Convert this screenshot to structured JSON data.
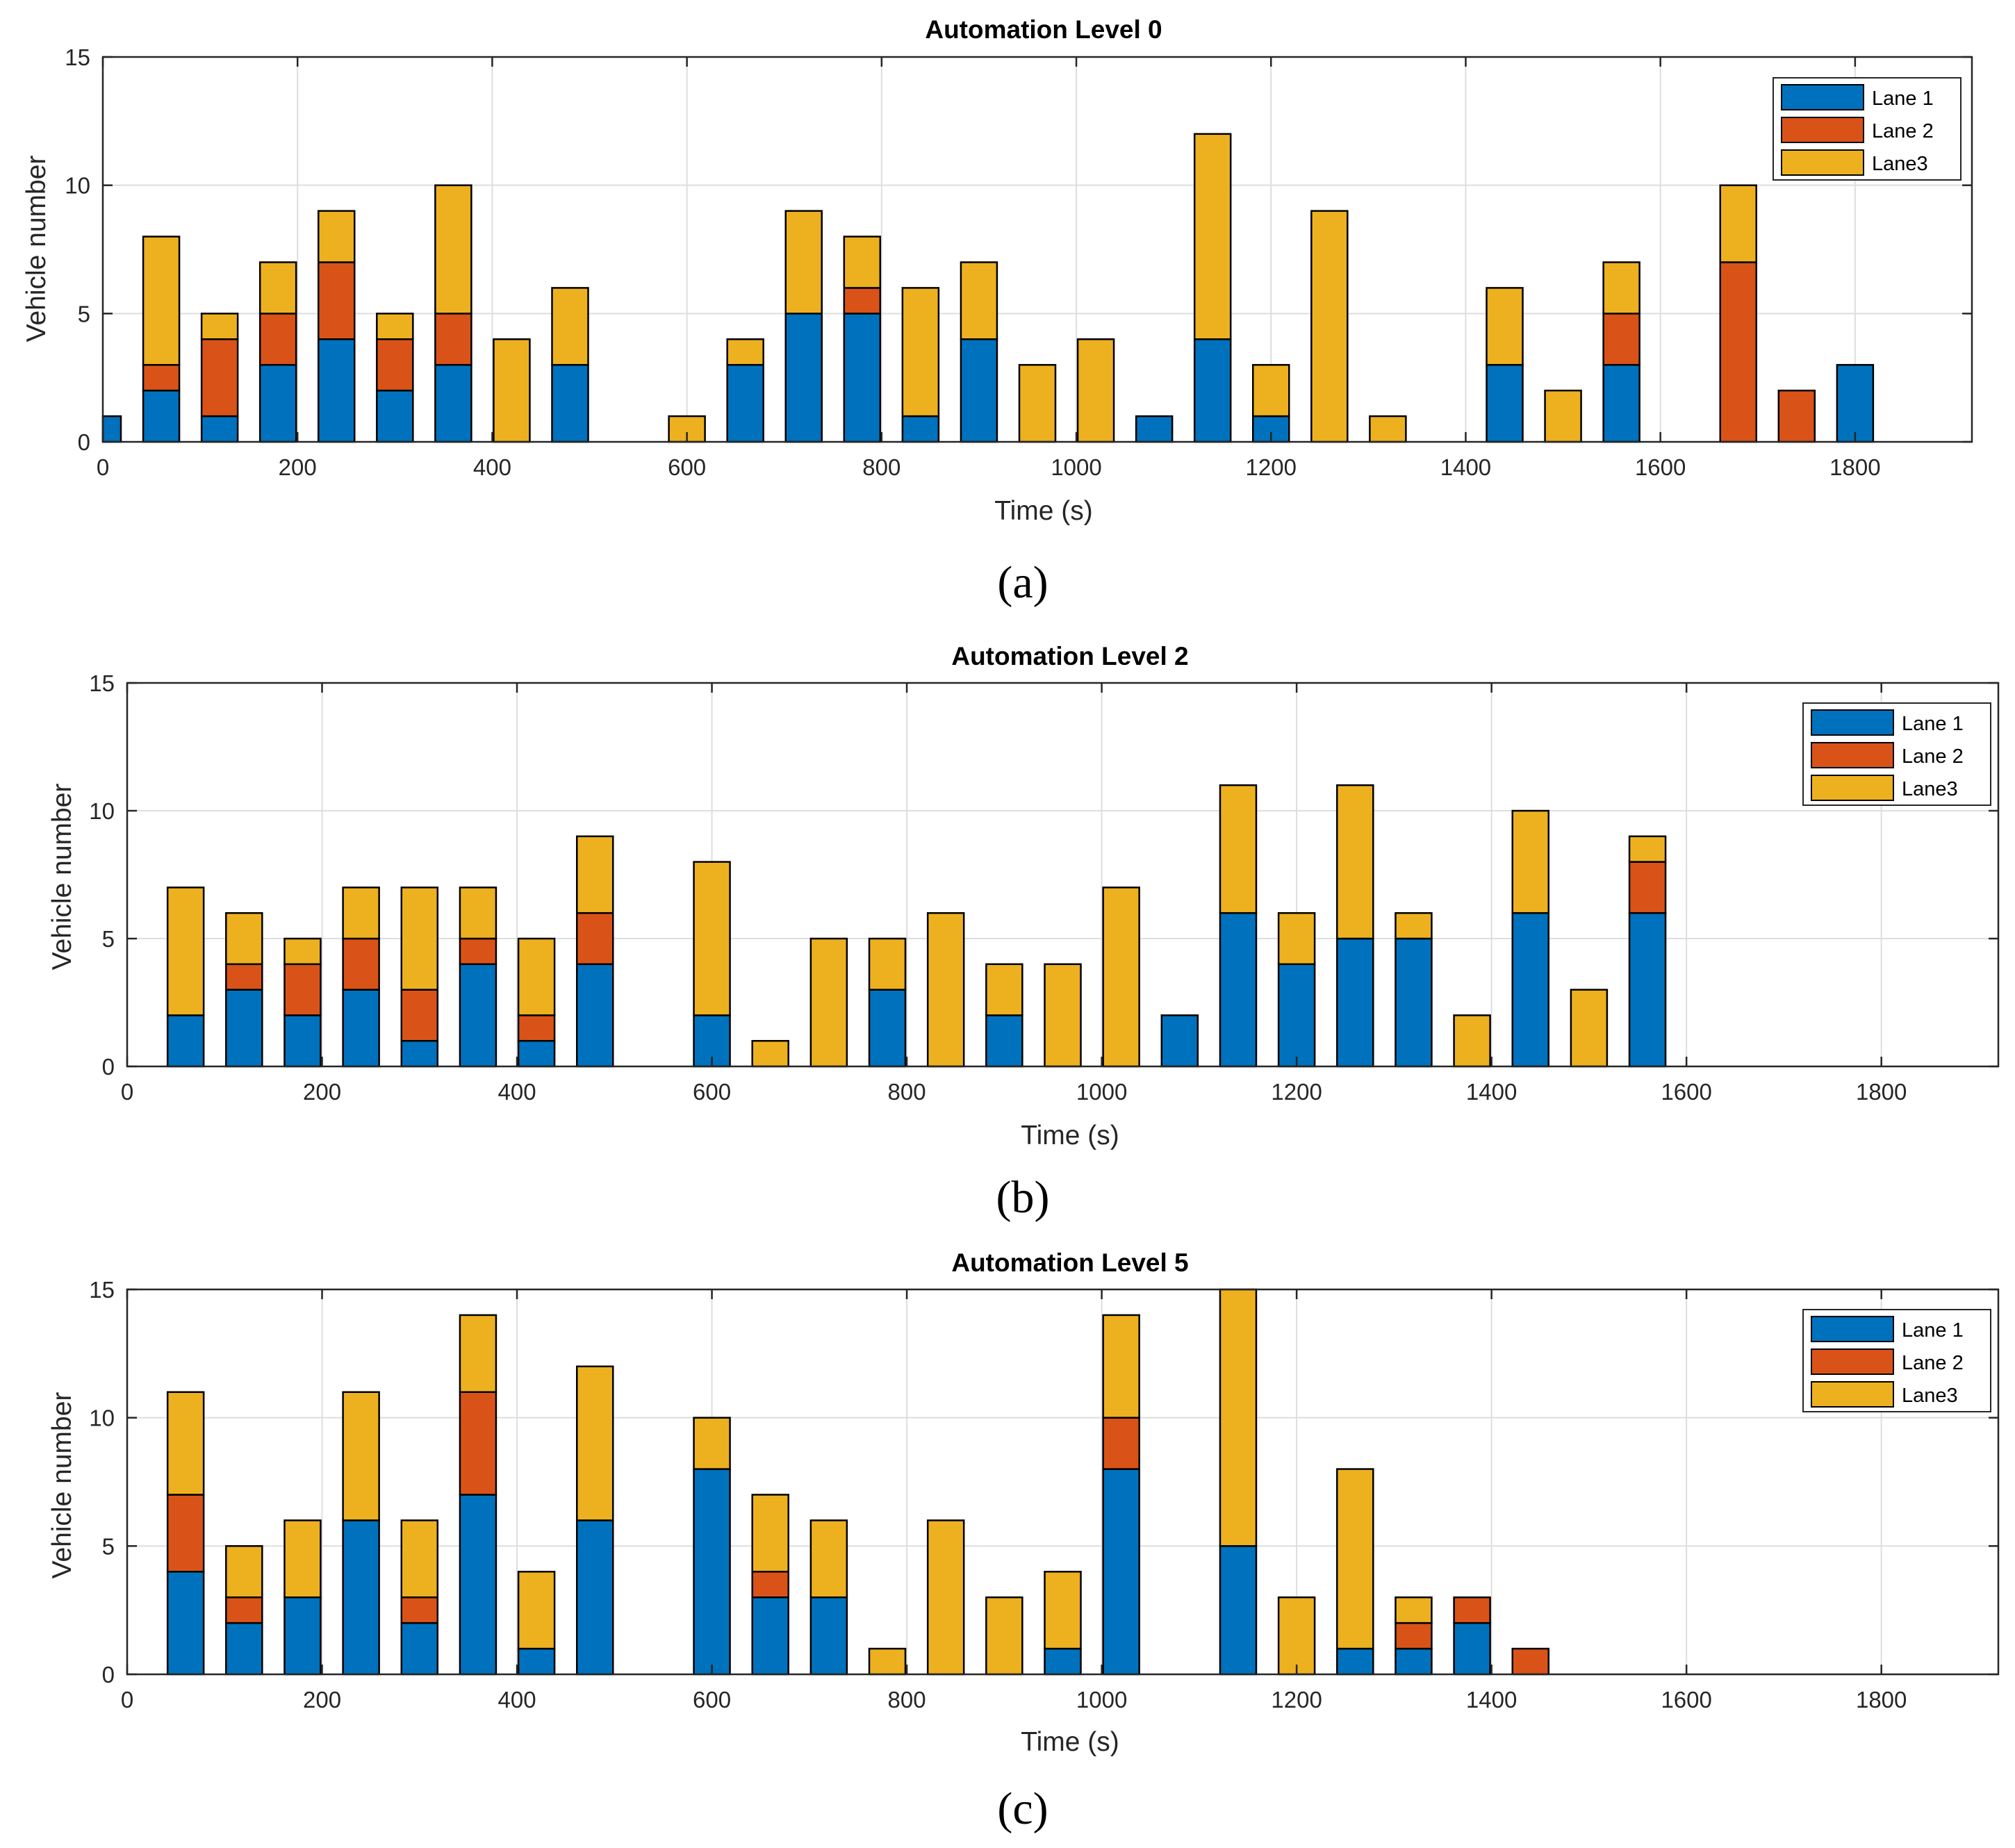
{
  "chart_data": [
    {
      "type": "bar",
      "stacked": true,
      "title": "Automation Level 0",
      "caption": "(a)",
      "xlabel": "Time (s)",
      "ylabel": "Vehicle number",
      "xlim": [
        0,
        1920
      ],
      "ylim": [
        0,
        15
      ],
      "xticks": [
        0,
        200,
        400,
        600,
        800,
        1000,
        1200,
        1400,
        1600,
        1800
      ],
      "yticks": [
        0,
        5,
        10,
        15
      ],
      "grid": true,
      "legend": {
        "position": "top-right",
        "entries": [
          "Lane 1",
          "Lane 2",
          "Lane3"
        ]
      },
      "x": [
        0,
        60,
        120,
        180,
        240,
        300,
        360,
        420,
        480,
        600,
        660,
        720,
        780,
        840,
        900,
        960,
        1020,
        1080,
        1140,
        1200,
        1260,
        1320,
        1440,
        1500,
        1560,
        1680,
        1740,
        1800
      ],
      "series": [
        {
          "name": "Lane 1",
          "color": "#0072BD",
          "values": [
            1,
            2,
            1,
            3,
            4,
            2,
            3,
            0,
            3,
            0,
            3,
            5,
            5,
            1,
            4,
            0,
            0,
            1,
            4,
            1,
            0,
            0,
            3,
            0,
            3,
            0,
            0,
            3
          ]
        },
        {
          "name": "Lane 2",
          "color": "#D95319",
          "values": [
            0,
            1,
            3,
            2,
            3,
            2,
            2,
            0,
            0,
            0,
            0,
            0,
            1,
            0,
            0,
            0,
            0,
            0,
            0,
            0,
            0,
            0,
            0,
            0,
            2,
            7,
            2,
            0
          ]
        },
        {
          "name": "Lane3",
          "color": "#EDB120",
          "values": [
            0,
            5,
            1,
            2,
            2,
            1,
            5,
            4,
            3,
            1,
            1,
            4,
            2,
            5,
            3,
            3,
            4,
            0,
            8,
            2,
            9,
            1,
            3,
            2,
            2,
            3,
            0,
            0
          ]
        }
      ]
    },
    {
      "type": "bar",
      "stacked": true,
      "title": "Automation Level 2",
      "caption": "(b)",
      "xlabel": "Time (s)",
      "ylabel": "Vehicle number",
      "xlim": [
        0,
        1920
      ],
      "ylim": [
        0,
        15
      ],
      "xticks": [
        0,
        200,
        400,
        600,
        800,
        1000,
        1200,
        1400,
        1600,
        1800
      ],
      "yticks": [
        0,
        5,
        10,
        15
      ],
      "grid": true,
      "legend": {
        "position": "top-right",
        "entries": [
          "Lane 1",
          "Lane 2",
          "Lane3"
        ]
      },
      "x": [
        60,
        120,
        180,
        240,
        300,
        360,
        420,
        480,
        600,
        660,
        720,
        780,
        840,
        900,
        960,
        1020,
        1080,
        1140,
        1200,
        1260,
        1320,
        1380,
        1440,
        1500,
        1560
      ],
      "series": [
        {
          "name": "Lane 1",
          "color": "#0072BD",
          "values": [
            2,
            3,
            2,
            3,
            1,
            4,
            1,
            4,
            2,
            0,
            0,
            3,
            0,
            2,
            0,
            0,
            2,
            6,
            4,
            5,
            5,
            0,
            6,
            0,
            6
          ]
        },
        {
          "name": "Lane 2",
          "color": "#D95319",
          "values": [
            0,
            1,
            2,
            2,
            2,
            1,
            1,
            2,
            0,
            0,
            0,
            0,
            0,
            0,
            0,
            0,
            0,
            0,
            0,
            0,
            0,
            0,
            0,
            0,
            2
          ]
        },
        {
          "name": "Lane3",
          "color": "#EDB120",
          "values": [
            5,
            2,
            1,
            2,
            4,
            2,
            3,
            3,
            6,
            1,
            5,
            2,
            6,
            2,
            4,
            7,
            0,
            5,
            2,
            6,
            1,
            2,
            4,
            3,
            1
          ]
        }
      ]
    },
    {
      "type": "bar",
      "stacked": true,
      "title": "Automation Level 5",
      "caption": "(c)",
      "xlabel": "Time (s)",
      "ylabel": "Vehicle number",
      "xlim": [
        0,
        1920
      ],
      "ylim": [
        0,
        15
      ],
      "xticks": [
        0,
        200,
        400,
        600,
        800,
        1000,
        1200,
        1400,
        1600,
        1800
      ],
      "yticks": [
        0,
        5,
        10,
        15
      ],
      "grid": true,
      "legend": {
        "position": "top-right",
        "entries": [
          "Lane 1",
          "Lane 2",
          "Lane3"
        ]
      },
      "x": [
        60,
        120,
        180,
        240,
        300,
        360,
        420,
        480,
        600,
        660,
        720,
        780,
        840,
        900,
        960,
        1020,
        1140,
        1200,
        1260,
        1320,
        1380,
        1440
      ],
      "series": [
        {
          "name": "Lane 1",
          "color": "#0072BD",
          "values": [
            4,
            2,
            3,
            6,
            2,
            7,
            1,
            6,
            8,
            3,
            3,
            0,
            0,
            0,
            1,
            8,
            5,
            0,
            1,
            1,
            2,
            0
          ]
        },
        {
          "name": "Lane 2",
          "color": "#D95319",
          "values": [
            3,
            1,
            0,
            0,
            1,
            4,
            0,
            0,
            0,
            1,
            0,
            0,
            0,
            0,
            0,
            2,
            0,
            0,
            0,
            1,
            1,
            1
          ]
        },
        {
          "name": "Lane3",
          "color": "#EDB120",
          "values": [
            4,
            2,
            3,
            5,
            3,
            3,
            3,
            6,
            2,
            3,
            3,
            1,
            6,
            3,
            3,
            4,
            10,
            3,
            7,
            1,
            0,
            0
          ]
        }
      ]
    }
  ]
}
